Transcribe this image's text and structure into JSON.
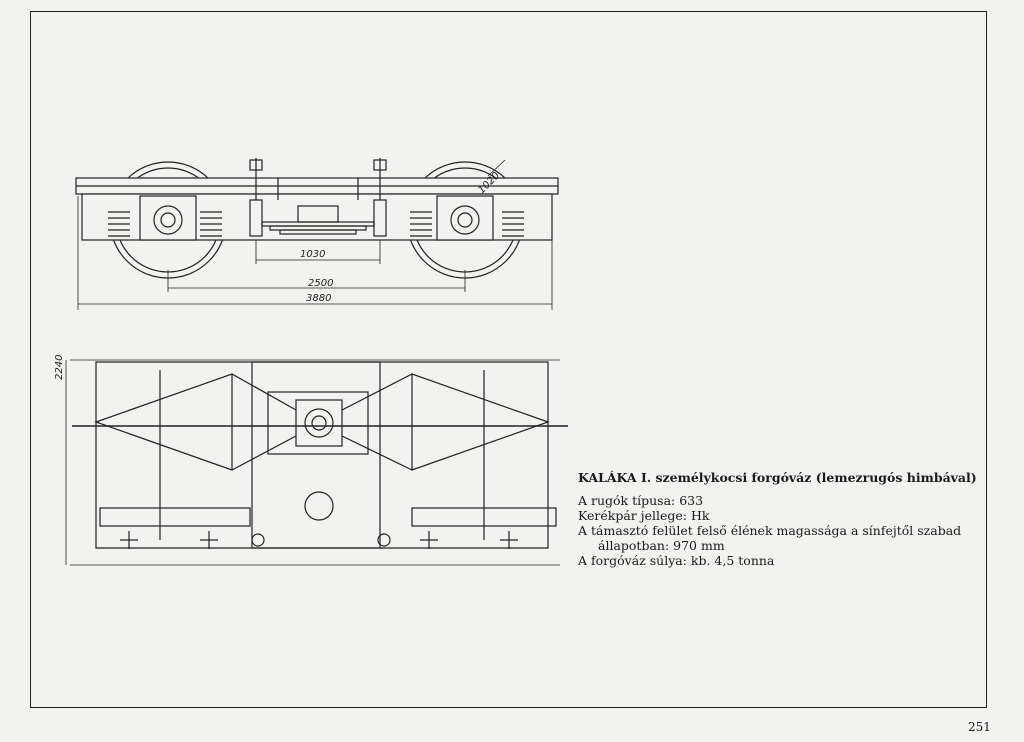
{
  "caption": {
    "title_bold": "KALÁKA I.",
    "title_rest": "személykocsi forgóváz (lemezrugós himbával)",
    "lines": [
      "A rugók típusa: 633",
      "Kerékpár jellege: Hk",
      "A támasztó felület felső élének magassága a sínfejtől szabad",
      "állapotban: 970 mm",
      "A forgóváz súlya: kb. 4,5 tonna"
    ]
  },
  "dimensions": {
    "center_spring": "1030",
    "wheelbase": "2500",
    "overall_length": "3880",
    "wheel_diameter": "1020",
    "frame_width": "2240"
  },
  "page_number": "251"
}
